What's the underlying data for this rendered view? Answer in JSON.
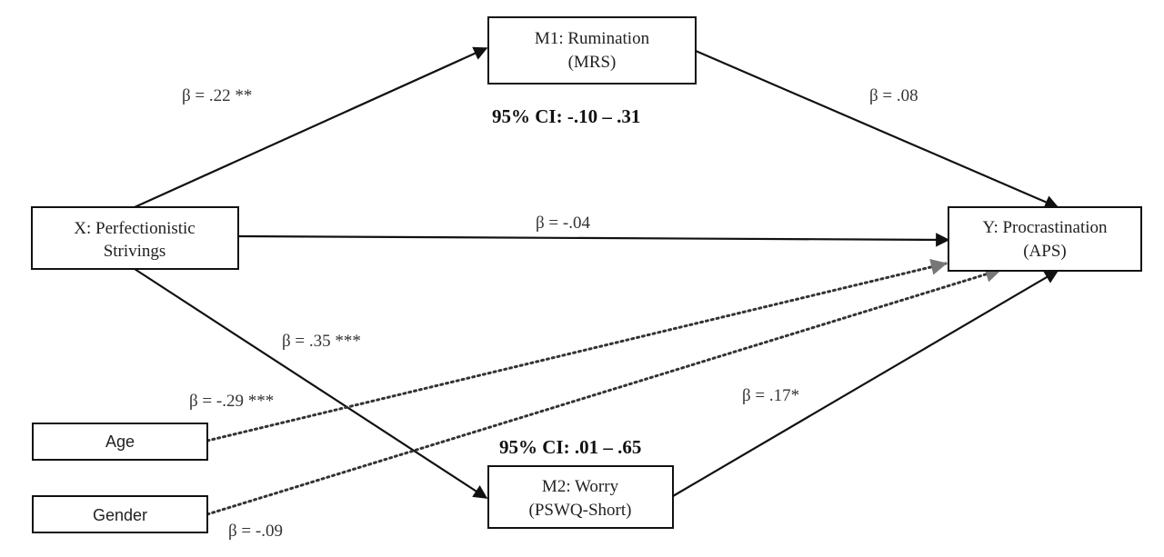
{
  "nodes": {
    "x": {
      "line1": "X: Perfectionistic",
      "line2": "Strivings"
    },
    "m1": {
      "line1": "M1: Rumination",
      "line2": "(MRS)"
    },
    "m2": {
      "line1": "M2: Worry",
      "line2": "(PSWQ-Short)"
    },
    "y": {
      "line1": "Y: Procrastination",
      "line2": "(APS)"
    },
    "age": {
      "label": "Age"
    },
    "gender": {
      "label": "Gender"
    }
  },
  "paths": {
    "x_m1": "β = .22 **",
    "m1_y": "β = .08",
    "x_y": "β = -.04",
    "x_m2": "β = .35 ***",
    "m2_y": "β = .17*",
    "age_y": "β = -.29 ***",
    "gender_y": "β = -.09"
  },
  "confidence_intervals": {
    "m1": "95% CI: -.10 – .31",
    "m2": "95% CI: .01 – .65"
  }
}
